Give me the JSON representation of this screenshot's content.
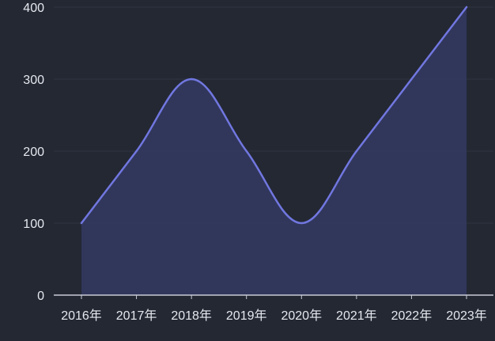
{
  "chart_data": {
    "type": "area",
    "categories": [
      "2016年",
      "2017年",
      "2018年",
      "2019年",
      "2020年",
      "2021年",
      "2022年",
      "2023年"
    ],
    "series": [
      {
        "values": [
          100,
          200,
          300,
          200,
          100,
          200,
          300,
          400
        ]
      }
    ],
    "y_ticks": [
      "0",
      "100",
      "200",
      "300",
      "400"
    ],
    "ylim": [
      0,
      400
    ],
    "grid": true,
    "smooth": true,
    "legend": "none",
    "colors": {
      "background": "#232833",
      "line": "#7177e0",
      "area": "#343a63",
      "grid": "#2f3441",
      "axis": "#c9ccd6",
      "text": "#e6e8ee"
    }
  }
}
